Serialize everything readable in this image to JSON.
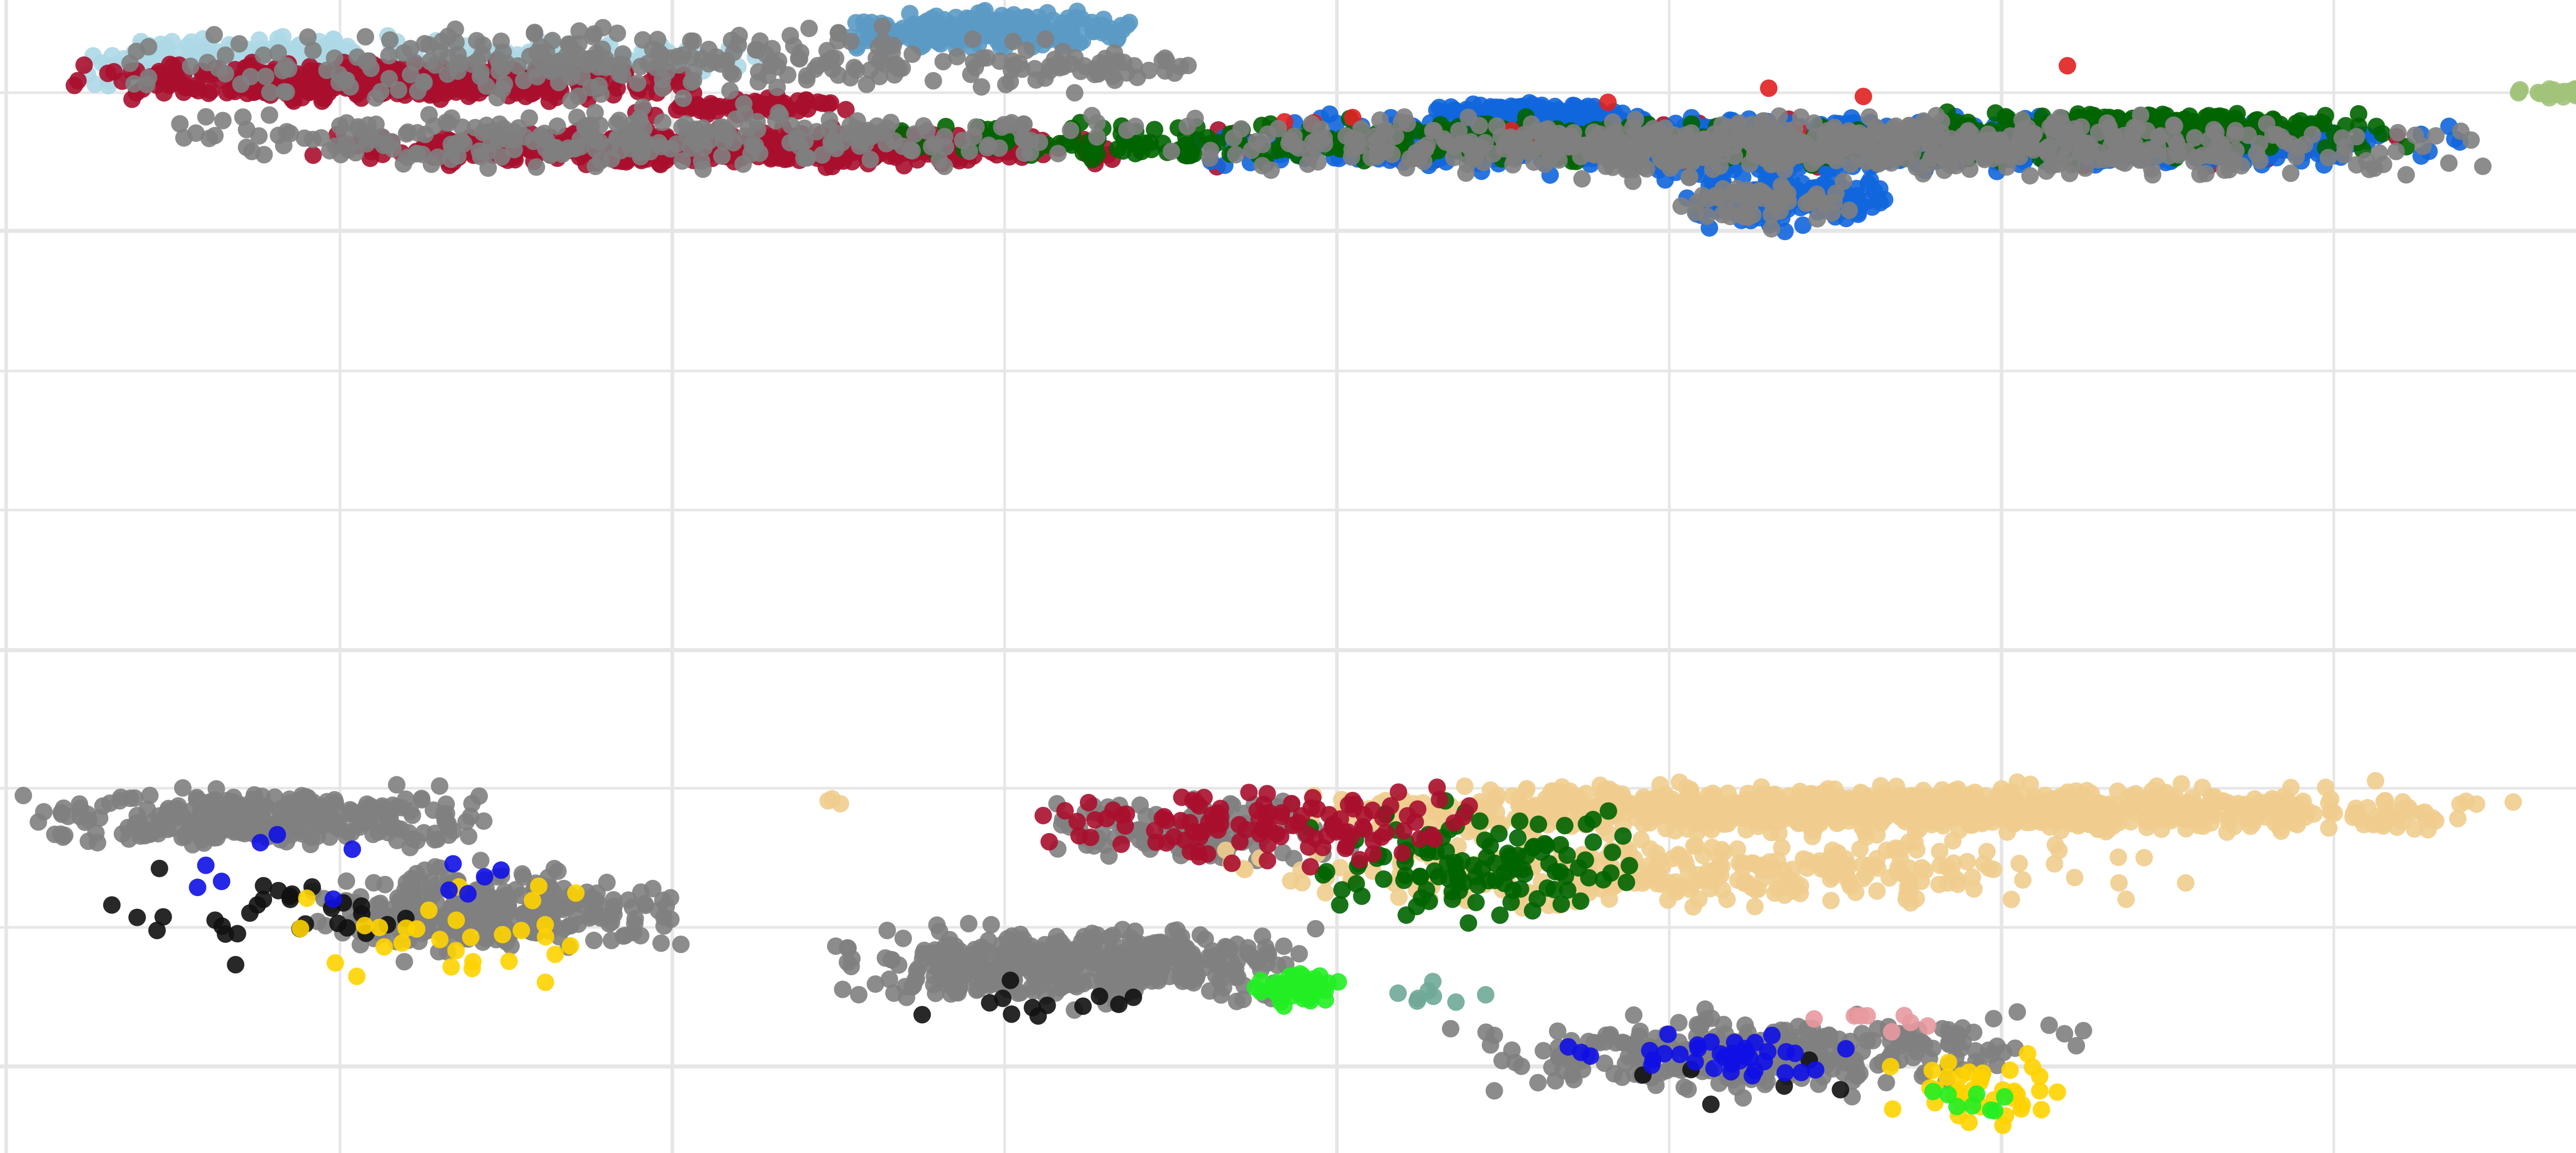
{
  "chart_data": [
    {
      "type": "scatter",
      "title": "",
      "xlabel": "",
      "ylabel": "",
      "xlim": [
        0,
        8
      ],
      "ylim": [
        0,
        3.7
      ],
      "grid": true,
      "legend": "none",
      "colors": {
        "light_blue": "#ADD8E6",
        "steel_blue": "#5B9AC4",
        "red": "#E02020",
        "crimson": "#A8102E",
        "blue": "#1166DD",
        "dark_green": "#006400",
        "sage": "#A2C37A",
        "grey": "#808080"
      },
      "series": [
        {
          "color": "#ADD8E6",
          "clusters": [
            {
              "x": [
                0.25,
                1.1
              ],
              "y": [
                3.0,
                3.5
              ],
              "n": 260
            },
            {
              "x": [
                0.7,
                2.4
              ],
              "y": [
                3.1,
                3.5
              ],
              "n": 120
            }
          ]
        },
        {
          "color": "#5B9AC4",
          "clusters": [
            {
              "x": [
                2.5,
                3.45
              ],
              "y": [
                3.32,
                3.65
              ],
              "n": 260
            }
          ]
        },
        {
          "color": "#A8102E",
          "clusters": [
            {
              "x": [
                0.2,
                2.2
              ],
              "y": [
                2.95,
                3.3
              ],
              "n": 420
            },
            {
              "x": [
                0.9,
                3.5
              ],
              "y": [
                2.5,
                2.82
              ],
              "n": 560
            },
            {
              "x": [
                1.9,
                2.6
              ],
              "y": [
                2.85,
                3.05
              ],
              "n": 70
            },
            {
              "x": [
                3.4,
                7.3
              ],
              "y": [
                2.45,
                2.92
              ],
              "n": 90
            }
          ]
        },
        {
          "color": "#1166DD",
          "clusters": [
            {
              "x": [
                3.5,
                7.5
              ],
              "y": [
                2.45,
                2.92
              ],
              "n": 1000
            },
            {
              "x": [
                5.0,
                5.7
              ],
              "y": [
                2.05,
                2.55
              ],
              "n": 180
            },
            {
              "x": [
                4.3,
                4.9
              ],
              "y": [
                2.8,
                3.0
              ],
              "n": 200
            }
          ]
        },
        {
          "color": "#006400",
          "clusters": [
            {
              "x": [
                2.4,
                7.5
              ],
              "y": [
                2.5,
                2.9
              ],
              "n": 480
            },
            {
              "x": [
                5.8,
                7.2
              ],
              "y": [
                2.7,
                2.95
              ],
              "n": 180
            }
          ]
        },
        {
          "color": "#A2C37A",
          "clusters": [
            {
              "x": [
                7.55,
                7.95
              ],
              "y": [
                3.0,
                3.1
              ],
              "n": 50
            }
          ]
        },
        {
          "color": "#E02020",
          "clusters": [
            {
              "x": [
                2.5,
                6.5
              ],
              "y": [
                2.4,
                3.5
              ],
              "n": 10
            }
          ]
        },
        {
          "color": "#808080",
          "clusters": [
            {
              "x": [
                0.3,
                3.5
              ],
              "y": [
                2.9,
                3.6
              ],
              "n": 260
            },
            {
              "x": [
                0.4,
                3.6
              ],
              "y": [
                2.45,
                3.0
              ],
              "n": 280
            },
            {
              "x": [
                3.5,
                7.5
              ],
              "y": [
                2.4,
                2.95
              ],
              "n": 640
            },
            {
              "x": [
                5.0,
                5.6
              ],
              "y": [
                2.05,
                2.5
              ],
              "n": 60
            },
            {
              "x": [
                3.0,
                3.6
              ],
              "y": [
                3.1,
                3.35
              ],
              "n": 40
            }
          ]
        }
      ]
    },
    {
      "type": "scatter",
      "title": "",
      "xlabel": "",
      "ylabel": "",
      "xlim": [
        0,
        8
      ],
      "ylim": [
        0,
        1.2
      ],
      "grid": true,
      "legend": "none",
      "colors": {
        "wheat": "#F0CD8E",
        "grey": "#808080",
        "black": "#111111",
        "gold": "#FFD300",
        "blue": "#1010E6",
        "green": "#006400",
        "lime": "#22EE22",
        "crimson": "#A8102E",
        "pink": "#E89AA0",
        "teal": "#6FA898"
      },
      "series": [
        {
          "color": "#808080",
          "clusters": [
            {
              "x": [
                0.05,
                1.5
              ],
              "y": [
                0.95,
                1.2
              ],
              "n": 300
            },
            {
              "x": [
                0.9,
                2.1
              ],
              "y": [
                0.6,
                0.95
              ],
              "n": 320
            },
            {
              "x": [
                2.5,
                4.0
              ],
              "y": [
                0.45,
                0.75
              ],
              "n": 420
            },
            {
              "x": [
                3.1,
                4.2
              ],
              "y": [
                0.9,
                1.15
              ],
              "n": 120
            },
            {
              "x": [
                4.3,
                6.3
              ],
              "y": [
                0.15,
                0.5
              ],
              "n": 300
            }
          ]
        },
        {
          "color": "#F0CD8E",
          "clusters": [
            {
              "x": [
                3.8,
                7.6
              ],
              "y": [
                1.0,
                1.2
              ],
              "n": 900
            },
            {
              "x": [
                3.6,
                6.6
              ],
              "y": [
                0.75,
                1.05
              ],
              "n": 300
            },
            {
              "x": [
                2.45,
                2.65
              ],
              "y": [
                1.1,
                1.16
              ],
              "n": 3
            }
          ]
        },
        {
          "color": "#111111",
          "clusters": [
            {
              "x": [
                0.3,
                1.5
              ],
              "y": [
                0.55,
                0.97
              ],
              "n": 30
            },
            {
              "x": [
                2.6,
                3.6
              ],
              "y": [
                0.35,
                0.6
              ],
              "n": 12
            },
            {
              "x": [
                4.5,
                6.1
              ],
              "y": [
                0.1,
                0.4
              ],
              "n": 6
            }
          ]
        },
        {
          "color": "#FFD300",
          "clusters": [
            {
              "x": [
                0.8,
                1.9
              ],
              "y": [
                0.45,
                0.95
              ],
              "n": 30
            },
            {
              "x": [
                5.6,
                6.3
              ],
              "y": [
                0.05,
                0.35
              ],
              "n": 40
            }
          ]
        },
        {
          "color": "#1010E6",
          "clusters": [
            {
              "x": [
                0.3,
                1.8
              ],
              "y": [
                0.7,
                1.15
              ],
              "n": 12
            },
            {
              "x": [
                4.6,
                5.8
              ],
              "y": [
                0.2,
                0.42
              ],
              "n": 40
            }
          ]
        },
        {
          "color": "#006400",
          "clusters": [
            {
              "x": [
                3.9,
                5.0
              ],
              "y": [
                0.7,
                1.15
              ],
              "n": 120
            }
          ]
        },
        {
          "color": "#22EE22",
          "clusters": [
            {
              "x": [
                3.75,
                4.05
              ],
              "y": [
                0.45,
                0.6
              ],
              "n": 50
            },
            {
              "x": [
                5.7,
                6.1
              ],
              "y": [
                0.12,
                0.25
              ],
              "n": 8
            }
          ]
        },
        {
          "color": "#A8102E",
          "clusters": [
            {
              "x": [
                3.1,
                4.5
              ],
              "y": [
                0.9,
                1.2
              ],
              "n": 120
            }
          ]
        },
        {
          "color": "#E89AA0",
          "clusters": [
            {
              "x": [
                5.4,
                6.0
              ],
              "y": [
                0.35,
                0.5
              ],
              "n": 8
            }
          ]
        },
        {
          "color": "#6FA898",
          "clusters": [
            {
              "x": [
                4.1,
                4.5
              ],
              "y": [
                0.45,
                0.58
              ],
              "n": 8
            }
          ]
        }
      ]
    }
  ]
}
